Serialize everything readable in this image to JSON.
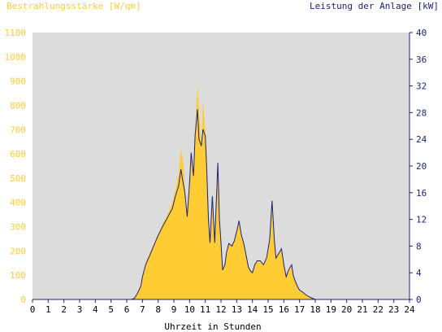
{
  "chart_data": {
    "type": "area",
    "title_left": "Bestrahlungsstärke [W/qm]",
    "title_right": "Leistung der Anlage [kW]",
    "xlabel": "Uhrzeit in Stunden",
    "xlim": [
      0,
      24
    ],
    "x_ticks": [
      "0",
      "1",
      "2",
      "3",
      "4",
      "5",
      "6",
      "7",
      "8",
      "9",
      "10",
      "11",
      "12",
      "13",
      "14",
      "15",
      "16",
      "17",
      "18",
      "19",
      "20",
      "21",
      "22",
      "23",
      "24"
    ],
    "y_left_lim": [
      0,
      1100
    ],
    "y_left_ticks": [
      "0",
      "100",
      "200",
      "300",
      "400",
      "500",
      "600",
      "700",
      "800",
      "900",
      "1000",
      "1100"
    ],
    "y_right_lim": [
      0,
      40
    ],
    "y_right_ticks": [
      "0",
      "4",
      "8",
      "12",
      "16",
      "20",
      "24",
      "28",
      "32",
      "36",
      "40"
    ],
    "plot_background": "#dcdcdc",
    "colors": {
      "irradiance": "#ffcc33",
      "power": "#1a237e",
      "axis": "#1a237e"
    },
    "series": [
      {
        "key": "irradiance",
        "axis": "left",
        "x": [
          0,
          6.3,
          6.5,
          6.7,
          6.9,
          7.0,
          7.2,
          7.5,
          7.8,
          8.0,
          8.3,
          8.6,
          8.9,
          9.1,
          9.3,
          9.45,
          9.55,
          9.7,
          9.85,
          10.0,
          10.1,
          10.25,
          10.35,
          10.5,
          10.6,
          10.75,
          10.85,
          11.0,
          11.1,
          11.2,
          11.3,
          11.45,
          11.6,
          11.8,
          11.9,
          12.0,
          12.1,
          12.25,
          12.35,
          12.5,
          12.7,
          12.85,
          13.0,
          13.15,
          13.3,
          13.45,
          13.6,
          13.75,
          13.9,
          14.0,
          14.15,
          14.3,
          14.5,
          14.7,
          14.9,
          15.1,
          15.25,
          15.4,
          15.5,
          15.6,
          15.7,
          15.85,
          16.0,
          16.15,
          16.3,
          16.5,
          16.6,
          16.75,
          16.9,
          17.0,
          17.2,
          17.4,
          17.6,
          17.8,
          18.0,
          18.2,
          18.5,
          18.7,
          24
        ],
        "values": [
          0,
          0,
          5,
          30,
          60,
          100,
          150,
          195,
          240,
          270,
          315,
          350,
          400,
          450,
          520,
          620,
          590,
          470,
          340,
          480,
          620,
          520,
          690,
          890,
          780,
          640,
          820,
          700,
          590,
          330,
          230,
          430,
          240,
          560,
          320,
          230,
          120,
          140,
          200,
          230,
          220,
          240,
          280,
          320,
          260,
          230,
          180,
          130,
          115,
          110,
          140,
          160,
          160,
          140,
          170,
          250,
          380,
          240,
          170,
          180,
          190,
          210,
          140,
          95,
          120,
          140,
          100,
          70,
          50,
          40,
          30,
          20,
          10,
          5,
          0,
          0,
          0,
          0,
          0
        ]
      },
      {
        "key": "power",
        "axis": "right",
        "x": [
          0,
          6.3,
          6.5,
          6.7,
          6.9,
          7.0,
          7.2,
          7.5,
          7.8,
          8.0,
          8.3,
          8.6,
          8.9,
          9.1,
          9.3,
          9.45,
          9.55,
          9.7,
          9.85,
          10.0,
          10.1,
          10.25,
          10.35,
          10.5,
          10.6,
          10.75,
          10.85,
          11.0,
          11.1,
          11.2,
          11.3,
          11.45,
          11.6,
          11.8,
          11.9,
          12.0,
          12.1,
          12.25,
          12.35,
          12.5,
          12.7,
          12.85,
          13.0,
          13.15,
          13.3,
          13.45,
          13.6,
          13.75,
          13.9,
          14.0,
          14.15,
          14.3,
          14.5,
          14.7,
          14.9,
          15.1,
          15.25,
          15.4,
          15.5,
          15.6,
          15.7,
          15.85,
          16.0,
          16.15,
          16.3,
          16.5,
          16.6,
          16.75,
          16.9,
          17.0,
          17.2,
          17.4,
          17.6,
          17.8,
          18.0,
          18.2,
          18.5,
          18.7,
          24
        ],
        "values": [
          0,
          0,
          0.2,
          1.0,
          2.0,
          3.4,
          5.2,
          6.8,
          8.5,
          9.6,
          11.0,
          12.3,
          13.6,
          15.5,
          17.0,
          19.5,
          18.0,
          16.0,
          12.4,
          17.5,
          22.0,
          18.5,
          24.5,
          28.5,
          24.0,
          23.0,
          25.5,
          24.5,
          19.0,
          12.0,
          8.5,
          15.5,
          8.5,
          20.5,
          12.0,
          8.5,
          4.4,
          5.2,
          7.0,
          8.4,
          8.0,
          8.8,
          10.2,
          11.8,
          9.6,
          8.4,
          6.6,
          4.8,
          4.2,
          4.0,
          5.2,
          5.8,
          5.8,
          5.2,
          6.2,
          9.0,
          14.8,
          8.8,
          6.2,
          6.6,
          7.0,
          7.6,
          5.2,
          3.4,
          4.4,
          5.2,
          3.6,
          2.6,
          1.8,
          1.4,
          1.1,
          0.7,
          0.4,
          0.2,
          0,
          0,
          0,
          0,
          0
        ]
      }
    ]
  }
}
